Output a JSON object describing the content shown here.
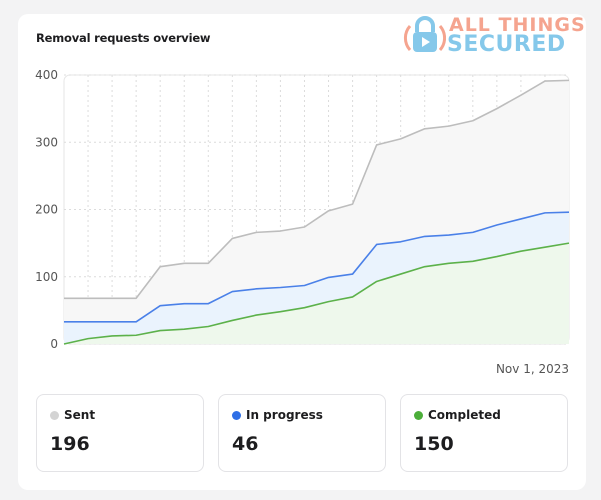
{
  "header": {
    "title": "Removal requests overview"
  },
  "logo": {
    "line1": "ALL THINGS",
    "line2": "SECURED"
  },
  "chart_data": {
    "type": "area",
    "title": "Removal requests overview",
    "y_ticks": [
      "0",
      "100",
      "200",
      "300",
      "400"
    ],
    "ylim": [
      0,
      400
    ],
    "x_label_end": "Nov 1, 2023",
    "grid": true,
    "series": [
      {
        "name": "Sent",
        "color": "#bdbdbd",
        "fill": "#f7f7f7",
        "values": [
          68,
          68,
          68,
          68,
          115,
          120,
          120,
          157,
          166,
          168,
          174,
          198,
          208,
          296,
          305,
          320,
          324,
          332,
          350,
          370,
          391,
          392
        ]
      },
      {
        "name": "In progress",
        "color": "#4a80e8",
        "fill": "#eaf3fd",
        "values": [
          33,
          33,
          33,
          33,
          57,
          60,
          60,
          78,
          82,
          84,
          87,
          99,
          104,
          148,
          152,
          160,
          162,
          166,
          177,
          186,
          195,
          196
        ]
      },
      {
        "name": "Completed",
        "color": "#5cb14a",
        "fill": "#eef8ec",
        "values": [
          0,
          8,
          12,
          13,
          20,
          22,
          26,
          35,
          43,
          48,
          54,
          63,
          70,
          93,
          104,
          115,
          120,
          123,
          130,
          138,
          144,
          150
        ]
      }
    ]
  },
  "stats": [
    {
      "label": "Sent",
      "value": "196",
      "color": "#d4d4d4"
    },
    {
      "label": "In progress",
      "value": "46",
      "color": "#2f6fe6"
    },
    {
      "label": "Completed",
      "value": "150",
      "color": "#4cae3a"
    }
  ]
}
